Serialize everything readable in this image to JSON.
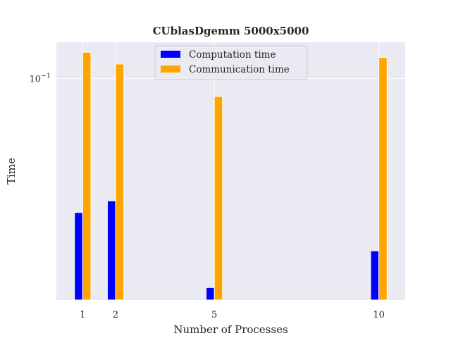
{
  "chart_data": {
    "type": "bar",
    "title": "CUblasDgemm 5000x5000",
    "xlabel": "Number of Processes",
    "ylabel": "Time",
    "x": [
      1,
      2,
      5,
      10
    ],
    "x_tick_labels": [
      "1",
      "2",
      "5",
      "10"
    ],
    "y_scale": "log",
    "y_tick_labels": [
      {
        "base": "10",
        "exponent": "−1",
        "value": 0.1
      }
    ],
    "ylim": [
      0.0133,
      0.139
    ],
    "xlim": [
      0.2,
      10.8
    ],
    "grid": true,
    "legend_position": "top-center",
    "series": [
      {
        "name": "Computation time",
        "color": "#0000ff",
        "values": [
          0.0295,
          0.0328,
          0.0149,
          0.0208
        ]
      },
      {
        "name": "Communication time",
        "color": "#ffa500",
        "values": [
          0.127,
          0.114,
          0.0848,
          0.121
        ]
      }
    ],
    "colors": {
      "plot_background": "#eaeaf2",
      "grid": "#ffffff"
    }
  }
}
